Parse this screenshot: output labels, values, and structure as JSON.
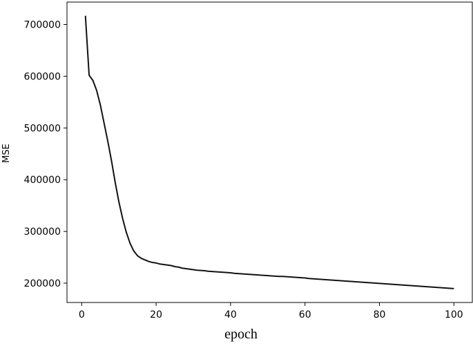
{
  "chart_data": {
    "type": "line",
    "x_label": "epoch",
    "y_label": "MSE",
    "x": [
      1,
      2,
      3,
      4,
      5,
      6,
      7,
      8,
      9,
      10,
      11,
      12,
      13,
      14,
      15,
      16,
      17,
      18,
      19,
      20,
      21,
      22,
      23,
      24,
      25,
      26,
      27,
      28,
      29,
      30,
      31,
      32,
      33,
      34,
      35,
      36,
      37,
      38,
      39,
      40,
      41,
      42,
      43,
      44,
      45,
      46,
      47,
      48,
      49,
      50,
      51,
      52,
      53,
      54,
      55,
      56,
      57,
      58,
      59,
      60,
      61,
      62,
      63,
      64,
      65,
      66,
      67,
      68,
      69,
      70,
      71,
      72,
      73,
      74,
      75,
      76,
      77,
      78,
      79,
      80,
      81,
      82,
      83,
      84,
      85,
      86,
      87,
      88,
      89,
      90,
      91,
      92,
      93,
      94,
      95,
      96,
      97,
      98,
      99,
      100
    ],
    "series": [
      {
        "color": "#111111",
        "values": [
          717000,
          602000,
          592000,
          573000,
          545000,
          510000,
          475000,
          437000,
          395000,
          357000,
          325000,
          298000,
          277000,
          262000,
          253000,
          248000,
          245000,
          242000,
          240000,
          239000,
          237000,
          236000,
          235000,
          234000,
          232000,
          231000,
          229000,
          228000,
          227000,
          226000,
          225000,
          224500,
          224000,
          223000,
          222500,
          222000,
          221500,
          221000,
          220500,
          220000,
          219000,
          218500,
          218000,
          217500,
          217000,
          216500,
          216000,
          215500,
          215000,
          214500,
          214000,
          213500,
          213000,
          213000,
          212500,
          212000,
          211500,
          211000,
          210500,
          210000,
          209000,
          208500,
          208000,
          207500,
          207000,
          206500,
          206000,
          205500,
          205000,
          204500,
          204000,
          203500,
          203000,
          202500,
          202000,
          201500,
          201000,
          200500,
          200000,
          199500,
          199000,
          198500,
          198000,
          197500,
          197000,
          196500,
          196000,
          195500,
          195000,
          194500,
          194000,
          193500,
          193000,
          192500,
          192000,
          191500,
          191000,
          190500,
          190000,
          189500
        ]
      }
    ],
    "xlim": [
      -3.95,
      104.95
    ],
    "xticks": [
      0,
      20,
      40,
      60,
      80,
      100
    ],
    "ylim": [
      162600,
      743400
    ],
    "yticks": [
      200000,
      300000,
      400000,
      500000,
      600000,
      700000
    ]
  }
}
